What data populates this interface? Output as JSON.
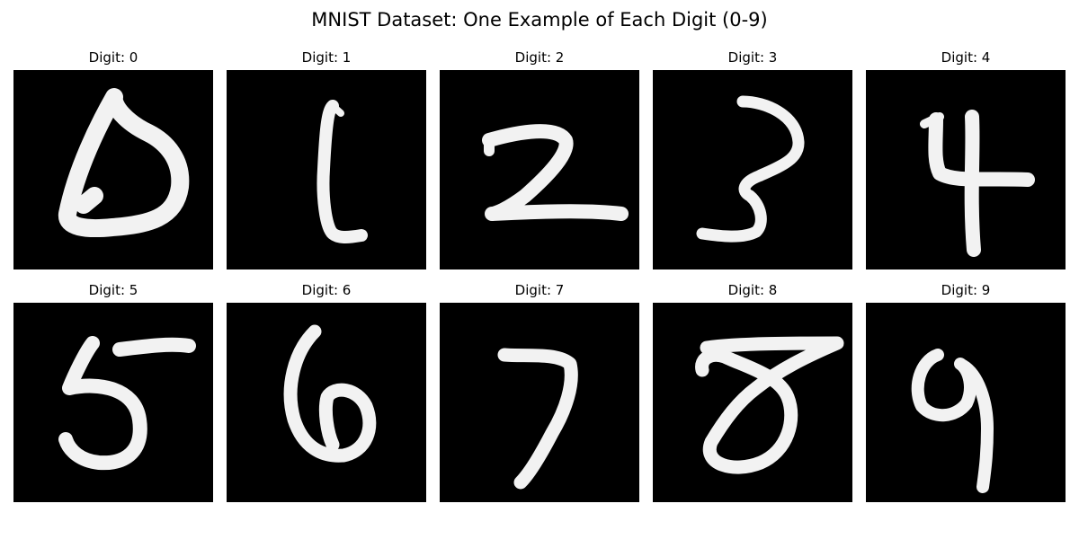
{
  "figure": {
    "title": "MNIST Dataset: One Example of Each Digit (0-9)"
  },
  "panels": [
    {
      "title": "Digit: 0"
    },
    {
      "title": "Digit: 1"
    },
    {
      "title": "Digit: 2"
    },
    {
      "title": "Digit: 3"
    },
    {
      "title": "Digit: 4"
    },
    {
      "title": "Digit: 5"
    },
    {
      "title": "Digit: 6"
    },
    {
      "title": "Digit: 7"
    },
    {
      "title": "Digit: 8"
    },
    {
      "title": "Digit: 9"
    }
  ],
  "colors": {
    "image_background": "#000000",
    "digit_stroke": "#f2f2f2",
    "page_background": "#ffffff"
  }
}
